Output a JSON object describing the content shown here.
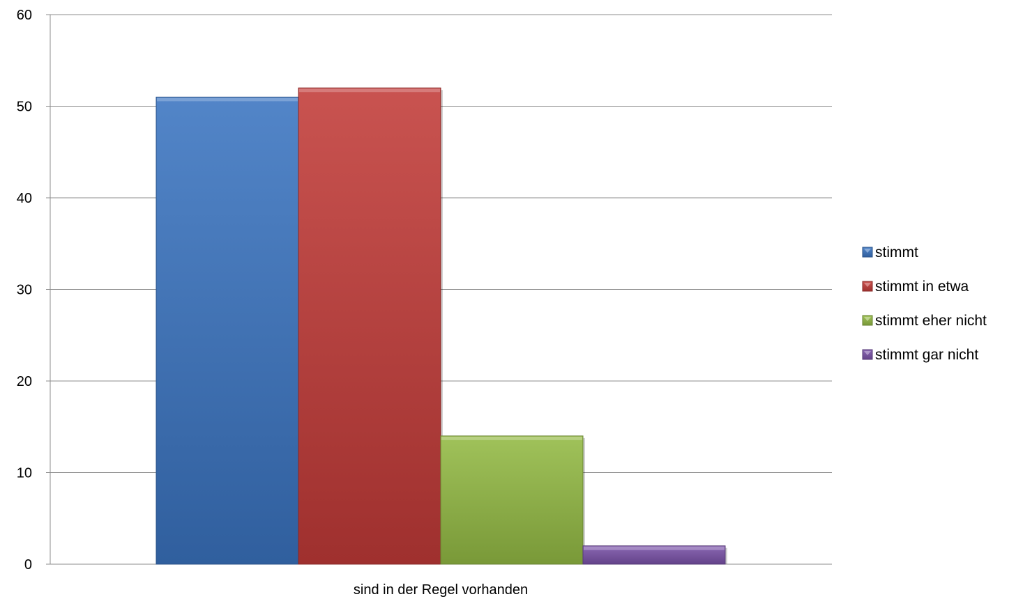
{
  "chart_data": {
    "type": "bar",
    "categories": [
      "sind in der Regel vorhanden"
    ],
    "series": [
      {
        "name": "stimmt",
        "values": [
          51
        ],
        "color": "#3a74c1"
      },
      {
        "name": "stimmt in etwa",
        "values": [
          52
        ],
        "color": "#c23b38"
      },
      {
        "name": "stimmt eher nicht",
        "values": [
          14
        ],
        "color": "#93ba44"
      },
      {
        "name": "stimmt gar nicht",
        "values": [
          2
        ],
        "color": "#7a52a8"
      }
    ],
    "title": "",
    "xlabel": "",
    "ylabel": "",
    "ylim": [
      0,
      60
    ],
    "yticks": [
      "0",
      "10",
      "20",
      "30",
      "40",
      "50",
      "60"
    ],
    "grid": true,
    "legend_position": "right"
  }
}
